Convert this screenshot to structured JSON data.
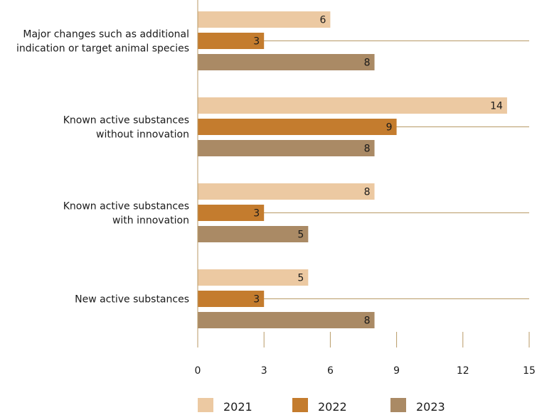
{
  "chart_data": {
    "type": "bar",
    "orientation": "horizontal",
    "categories": [
      [
        "Major changes such as additional",
        "indication or target animal species"
      ],
      [
        "Known active substances",
        "without innovation"
      ],
      [
        "Known active substances",
        "with innovation"
      ],
      [
        "New active substances"
      ]
    ],
    "series": [
      {
        "name": "2021",
        "color": "#ecc9a2",
        "values": [
          6,
          14,
          8,
          5
        ]
      },
      {
        "name": "2022",
        "color": "#c47c2e",
        "values": [
          3,
          9,
          3,
          3
        ]
      },
      {
        "name": "2023",
        "color": "#aa8a65",
        "values": [
          8,
          8,
          5,
          8
        ]
      }
    ],
    "xlim": [
      0,
      15
    ],
    "xticks": [
      "0",
      "3",
      "6",
      "9",
      "12",
      "15"
    ],
    "xtick_values": [
      0,
      3,
      6,
      9,
      12,
      15
    ],
    "grid": "vertical ticks only",
    "legend_position": "bottom",
    "title": "",
    "xlabel": "",
    "ylabel": "",
    "gridline_color": "#b89a66"
  }
}
